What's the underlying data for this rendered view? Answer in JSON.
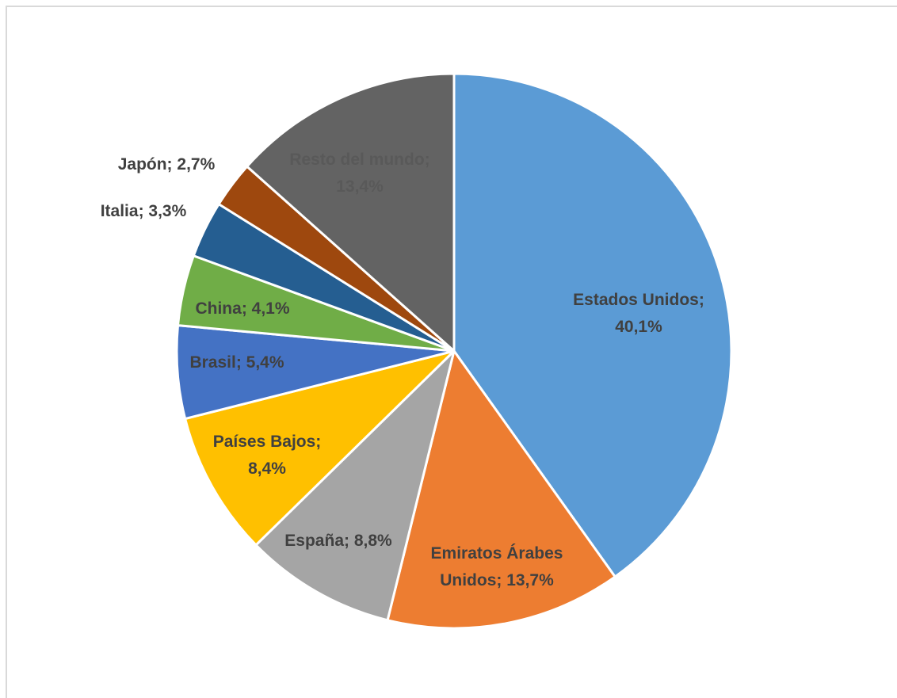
{
  "chart_data": {
    "type": "pie",
    "title": "",
    "slices": [
      {
        "label": "Estados Unidos",
        "value": 40.1,
        "color": "#5b9bd5",
        "text_color": "#404040",
        "lines": [
          "Estados Unidos;",
          "40,1%"
        ]
      },
      {
        "label": "Emiratos Árabes Unidos",
        "value": 13.7,
        "color": "#ed7d31",
        "text_color": "#404040",
        "lines": [
          "Emiratos Árabes",
          "Unidos; 13,7%"
        ]
      },
      {
        "label": "España",
        "value": 8.8,
        "color": "#a5a5a5",
        "text_color": "#404040",
        "lines": [
          "España; 8,8%"
        ]
      },
      {
        "label": "Países Bajos",
        "value": 8.4,
        "color": "#ffc000",
        "text_color": "#404040",
        "lines": [
          "Países Bajos;",
          "8,4%"
        ]
      },
      {
        "label": "Brasil",
        "value": 5.4,
        "color": "#4472c4",
        "text_color": "#404040",
        "lines": [
          "Brasil; 5,4%"
        ]
      },
      {
        "label": "China",
        "value": 4.1,
        "color": "#70ad47",
        "text_color": "#404040",
        "lines": [
          "China; 4,1%"
        ]
      },
      {
        "label": "Italia",
        "value": 3.3,
        "color": "#255e91",
        "text_color": "#404040",
        "lines": [
          "Italia; 3,3%"
        ]
      },
      {
        "label": "Japón",
        "value": 2.7,
        "color": "#9e480e",
        "text_color": "#404040",
        "lines": [
          "Japón; 2,7%"
        ]
      },
      {
        "label": "Resto del mundo",
        "value": 13.4,
        "color": "#636363",
        "text_color": "#595959",
        "lines": [
          "Resto del mundo;",
          "13,4%"
        ]
      }
    ],
    "legend": "none",
    "data_labels": "category; percent"
  }
}
